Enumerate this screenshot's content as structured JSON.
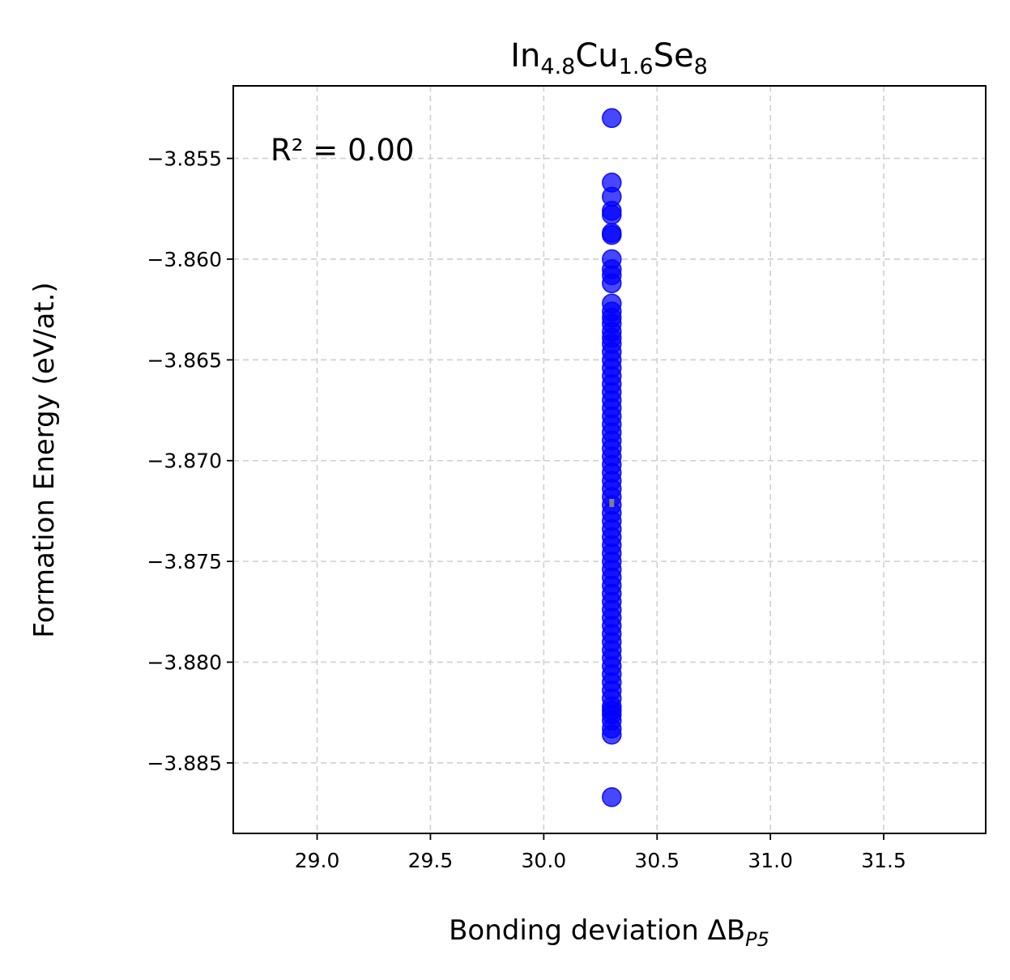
{
  "chart_data": {
    "type": "scatter",
    "title": {
      "base1": "In",
      "sub1": "4",
      "mid1": ".",
      "sub1b": "8",
      "base2": "Cu",
      "sub2": "1",
      "mid2": ".",
      "sub2b": "6",
      "base3": "Se",
      "sub3": "8"
    },
    "xlabel": {
      "main": "Bonding deviation ΔB",
      "sub": "P5"
    },
    "ylabel": "Formation Energy (eV/at.)",
    "annotation": "R² = 0.00",
    "xlim": [
      28.63,
      31.95
    ],
    "ylim": [
      -3.8885,
      -3.8514
    ],
    "xticks": [
      29.0,
      29.5,
      30.0,
      30.5,
      31.0,
      31.5
    ],
    "xtick_labels": [
      "29.0",
      "29.5",
      "30.0",
      "30.5",
      "31.0",
      "31.5"
    ],
    "yticks": [
      -3.855,
      -3.86,
      -3.865,
      -3.87,
      -3.875,
      -3.88,
      -3.885
    ],
    "ytick_labels": [
      "−3.855",
      "−3.860",
      "−3.865",
      "−3.870",
      "−3.875",
      "−3.880",
      "−3.885"
    ],
    "grid": true,
    "point_color": "#0000ff",
    "fit_color": "#808080",
    "series": [
      {
        "x_value": 30.3,
        "y": [
          -3.853,
          -3.8562,
          -3.8569,
          -3.8576,
          -3.8578,
          -3.8587,
          -3.8588,
          -3.86,
          -3.8605,
          -3.8608,
          -3.8612,
          -3.8622,
          -3.8626,
          -3.8629,
          -3.8632,
          -3.8636,
          -3.8639,
          -3.8642,
          -3.8646,
          -3.865,
          -3.8654,
          -3.8658,
          -3.8662,
          -3.8666,
          -3.867,
          -3.8674,
          -3.8678,
          -3.8682,
          -3.8686,
          -3.869,
          -3.8694,
          -3.8698,
          -3.8702,
          -3.8706,
          -3.871,
          -3.8714,
          -3.8718,
          -3.8722,
          -3.8726,
          -3.873,
          -3.8734,
          -3.8738,
          -3.8742,
          -3.8746,
          -3.875,
          -3.8754,
          -3.8758,
          -3.8762,
          -3.8766,
          -3.877,
          -3.8774,
          -3.8778,
          -3.8782,
          -3.8786,
          -3.879,
          -3.8794,
          -3.8798,
          -3.8802,
          -3.8806,
          -3.881,
          -3.8814,
          -3.8818,
          -3.8822,
          -3.8824,
          -3.8826,
          -3.8829,
          -3.8833,
          -3.8836,
          -3.8867
        ]
      }
    ],
    "fit_line": {
      "x": [
        30.3,
        30.3
      ],
      "y": [
        -3.8719,
        -3.8723
      ]
    }
  }
}
